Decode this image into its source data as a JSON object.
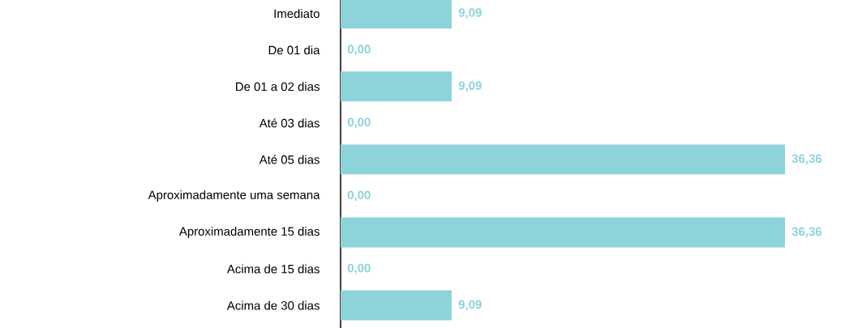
{
  "chart_data": {
    "type": "bar",
    "orientation": "horizontal",
    "categories": [
      "Imediato",
      "De 01 dia",
      "De 01 a 02 dias",
      "Até 03 dias",
      "Até 05 dias",
      "Aproximadamente uma semana",
      "Aproximadamente 15 dias",
      "Acima de 15 dias",
      "Acima de 30 dias"
    ],
    "values": [
      9.09,
      0,
      9.09,
      0,
      36.36,
      0,
      36.36,
      0,
      9.09
    ],
    "value_labels": [
      "9,09",
      "0,00",
      "9,09",
      "0,00",
      "36,36",
      "0,00",
      "36,36",
      "0,00",
      "9,09"
    ],
    "color": "#8dd3da"
  }
}
